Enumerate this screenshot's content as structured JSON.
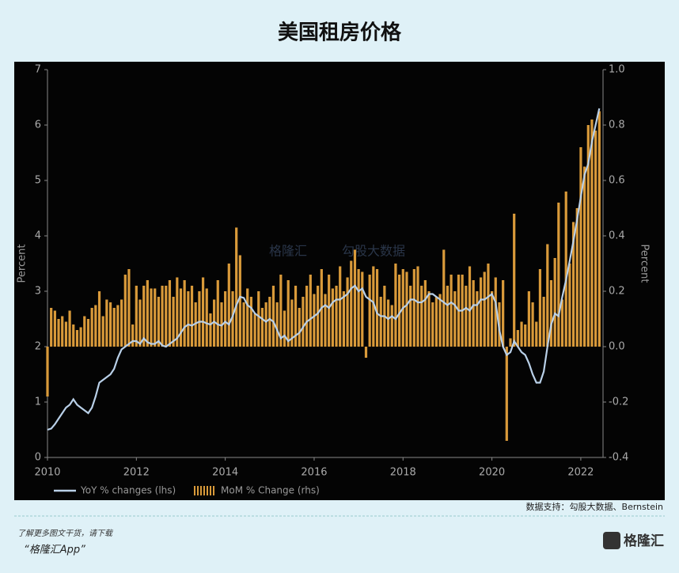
{
  "chart_data": {
    "type": "bar_line",
    "title": "美国租房价格",
    "ylabel": "Percent",
    "y2label": "Percent",
    "xlim": [
      2010,
      2022.5
    ],
    "xticks": [
      2010,
      2012,
      2014,
      2016,
      2018,
      2020,
      2022
    ],
    "ylim": [
      0,
      7
    ],
    "yticks": [
      0,
      1,
      2,
      3,
      4,
      5,
      6,
      7
    ],
    "y2lim": [
      -0.4,
      1.0
    ],
    "y2ticks": [
      -0.4,
      -0.2,
      {
        "value": 0,
        "label": "0.0"
      },
      0.2,
      0.4,
      0.6,
      0.8,
      {
        "value": 1,
        "label": "1.0"
      }
    ],
    "x": [
      2010,
      2010.083,
      2010.167,
      2010.25,
      2010.333,
      2010.417,
      2010.5,
      2010.583,
      2010.667,
      2010.75,
      2010.833,
      2010.917,
      2011,
      2011.083,
      2011.167,
      2011.25,
      2011.333,
      2011.417,
      2011.5,
      2011.583,
      2011.667,
      2011.75,
      2011.833,
      2011.917,
      2012,
      2012.083,
      2012.167,
      2012.25,
      2012.333,
      2012.417,
      2012.5,
      2012.583,
      2012.667,
      2012.75,
      2012.833,
      2012.917,
      2013,
      2013.083,
      2013.167,
      2013.25,
      2013.333,
      2013.417,
      2013.5,
      2013.583,
      2013.667,
      2013.75,
      2013.833,
      2013.917,
      2014,
      2014.083,
      2014.167,
      2014.25,
      2014.333,
      2014.417,
      2014.5,
      2014.583,
      2014.667,
      2014.75,
      2014.833,
      2014.917,
      2015,
      2015.083,
      2015.167,
      2015.25,
      2015.333,
      2015.417,
      2015.5,
      2015.583,
      2015.667,
      2015.75,
      2015.833,
      2015.917,
      2016,
      2016.083,
      2016.167,
      2016.25,
      2016.333,
      2016.417,
      2016.5,
      2016.583,
      2016.667,
      2016.75,
      2016.833,
      2016.917,
      2017,
      2017.083,
      2017.167,
      2017.25,
      2017.333,
      2017.417,
      2017.5,
      2017.583,
      2017.667,
      2017.75,
      2017.833,
      2017.917,
      2018,
      2018.083,
      2018.167,
      2018.25,
      2018.333,
      2018.417,
      2018.5,
      2018.583,
      2018.667,
      2018.75,
      2018.833,
      2018.917,
      2019,
      2019.083,
      2019.167,
      2019.25,
      2019.333,
      2019.417,
      2019.5,
      2019.583,
      2019.667,
      2019.75,
      2019.833,
      2019.917,
      2020,
      2020.083,
      2020.167,
      2020.25,
      2020.333,
      2020.417,
      2020.5,
      2020.583,
      2020.667,
      2020.75,
      2020.833,
      2020.917,
      2021,
      2021.083,
      2021.167,
      2021.25,
      2021.333,
      2021.417,
      2021.5,
      2021.583,
      2021.667,
      2021.75,
      2021.833,
      2021.917,
      2022,
      2022.083,
      2022.167,
      2022.25,
      2022.333,
      2022.417
    ],
    "series": [
      {
        "name": "YoY % changes (lhs)",
        "type": "line",
        "color": "#b9d0e8",
        "values": [
          0.5,
          0.52,
          0.6,
          0.7,
          0.8,
          0.9,
          0.95,
          1.05,
          0.95,
          0.9,
          0.85,
          0.8,
          0.9,
          1.1,
          1.35,
          1.4,
          1.45,
          1.5,
          1.6,
          1.8,
          1.95,
          2.0,
          2.05,
          2.1,
          2.1,
          2.05,
          2.15,
          2.08,
          2.05,
          2.05,
          2.1,
          2.02,
          2.0,
          2.05,
          2.1,
          2.15,
          2.25,
          2.35,
          2.4,
          2.38,
          2.42,
          2.45,
          2.45,
          2.42,
          2.4,
          2.45,
          2.4,
          2.38,
          2.45,
          2.4,
          2.55,
          2.75,
          2.9,
          2.88,
          2.75,
          2.7,
          2.6,
          2.55,
          2.5,
          2.45,
          2.5,
          2.45,
          2.3,
          2.15,
          2.2,
          2.1,
          2.15,
          2.2,
          2.25,
          2.35,
          2.45,
          2.5,
          2.55,
          2.6,
          2.7,
          2.75,
          2.7,
          2.8,
          2.85,
          2.85,
          2.9,
          2.95,
          3.05,
          3.1,
          3.0,
          3.05,
          2.9,
          2.85,
          2.8,
          2.6,
          2.55,
          2.55,
          2.5,
          2.55,
          2.5,
          2.6,
          2.7,
          2.75,
          2.85,
          2.85,
          2.8,
          2.8,
          2.85,
          2.95,
          2.95,
          2.9,
          2.85,
          2.8,
          2.75,
          2.8,
          2.75,
          2.65,
          2.65,
          2.7,
          2.65,
          2.75,
          2.75,
          2.85,
          2.85,
          2.9,
          2.95,
          2.8,
          2.3,
          2.0,
          1.85,
          1.9,
          2.1,
          2.0,
          1.9,
          1.85,
          1.7,
          1.5,
          1.35,
          1.35,
          1.55,
          2.0,
          2.4,
          2.6,
          2.55,
          2.9,
          3.2,
          3.55,
          3.9,
          4.3,
          4.7,
          5.1,
          5.3,
          5.7,
          6.0,
          6.3
        ]
      },
      {
        "name": "MoM % Change (rhs)",
        "type": "bar",
        "axis": "y2",
        "color": "#d99a3a",
        "values": [
          -0.18,
          0.14,
          0.13,
          0.1,
          0.11,
          0.09,
          0.13,
          0.08,
          0.06,
          0.07,
          0.11,
          0.1,
          0.14,
          0.15,
          0.2,
          0.11,
          0.17,
          0.16,
          0.14,
          0.15,
          0.17,
          0.26,
          0.28,
          0.08,
          0.22,
          0.17,
          0.22,
          0.24,
          0.21,
          0.21,
          0.18,
          0.22,
          0.22,
          0.24,
          0.18,
          0.25,
          0.21,
          0.24,
          0.2,
          0.22,
          0.16,
          0.2,
          0.25,
          0.21,
          0.12,
          0.17,
          0.24,
          0.16,
          0.2,
          0.3,
          0.2,
          0.43,
          0.33,
          0.16,
          0.21,
          0.18,
          0.12,
          0.2,
          0.14,
          0.16,
          0.18,
          0.22,
          0.16,
          0.26,
          0.13,
          0.24,
          0.17,
          0.22,
          0.14,
          0.18,
          0.22,
          0.26,
          0.19,
          0.22,
          0.28,
          0.19,
          0.26,
          0.21,
          0.22,
          0.29,
          0.2,
          0.25,
          0.31,
          0.35,
          0.28,
          0.27,
          -0.04,
          0.26,
          0.29,
          0.28,
          0.18,
          0.22,
          0.17,
          0.15,
          0.3,
          0.26,
          0.28,
          0.27,
          0.22,
          0.28,
          0.29,
          0.22,
          0.24,
          0.2,
          0.16,
          0.18,
          0.19,
          0.35,
          0.22,
          0.26,
          0.2,
          0.26,
          0.26,
          0.22,
          0.29,
          0.24,
          0.2,
          0.25,
          0.27,
          0.3,
          0.2,
          0.25,
          0.16,
          0.24,
          -0.34,
          0.03,
          0.48,
          0.06,
          0.09,
          0.08,
          0.2,
          0.16,
          0.09,
          0.28,
          0.18,
          0.37,
          0.24,
          0.32,
          0.52,
          0.17,
          0.56,
          0.3,
          0.45,
          0.5,
          0.72,
          0.65,
          0.8,
          0.82,
          0.78,
          0.85
        ]
      }
    ]
  },
  "watermark": [
    "格隆汇",
    "勾股大数据"
  ],
  "source": "数据支持：勾股大数据、Bernstein",
  "footer": {
    "text": "了解更多图文干货，请下载",
    "app": "“格隆汇App”",
    "logo": "格隆汇"
  }
}
